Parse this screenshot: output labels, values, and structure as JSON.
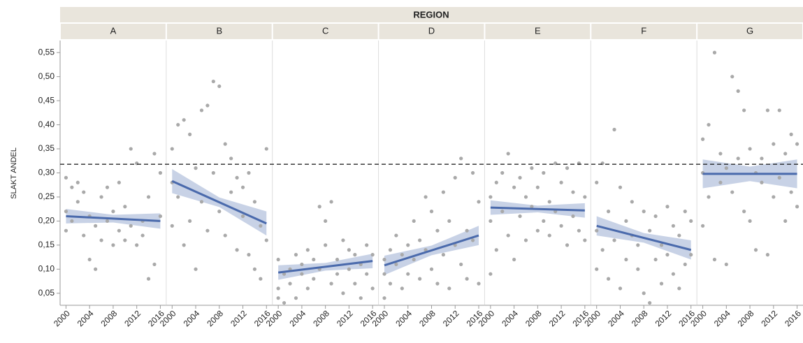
{
  "chart_data": {
    "type": "scatter",
    "facet_label": "REGION",
    "y_label": "SLAKT ANDEL",
    "ylim": [
      0.025,
      0.575
    ],
    "yticks": [
      {
        "value": 0.05,
        "label": "0,05"
      },
      {
        "value": 0.1,
        "label": "0,10"
      },
      {
        "value": 0.15,
        "label": "0,15"
      },
      {
        "value": 0.2,
        "label": "0,20"
      },
      {
        "value": 0.25,
        "label": "0,25"
      },
      {
        "value": 0.3,
        "label": "0,30"
      },
      {
        "value": 0.35,
        "label": "0,35"
      },
      {
        "value": 0.4,
        "label": "0,40"
      },
      {
        "value": 0.45,
        "label": "0,45"
      },
      {
        "value": 0.5,
        "label": "0,50"
      },
      {
        "value": 0.55,
        "label": "0,55"
      }
    ],
    "xlim": [
      1999,
      2017
    ],
    "xticks": [
      2000,
      2004,
      2008,
      2012,
      2016
    ],
    "reference_line": 0.318,
    "point_color": "#a9a9a9",
    "line_color": "#4a6aac",
    "panels": [
      {
        "title": "A",
        "x": [
          2000,
          2000,
          2000,
          2001,
          2001,
          2002,
          2002,
          2003,
          2003,
          2004,
          2004,
          2005,
          2005,
          2006,
          2006,
          2007,
          2007,
          2008,
          2008,
          2009,
          2009,
          2010,
          2010,
          2011,
          2011,
          2012,
          2012,
          2013,
          2013,
          2014,
          2014,
          2015,
          2015,
          2016,
          2016
        ],
        "y": [
          0.29,
          0.22,
          0.18,
          0.27,
          0.2,
          0.28,
          0.24,
          0.26,
          0.17,
          0.12,
          0.21,
          0.1,
          0.19,
          0.25,
          0.16,
          0.27,
          0.2,
          0.22,
          0.15,
          0.18,
          0.28,
          0.23,
          0.16,
          0.35,
          0.19,
          0.32,
          0.15,
          0.2,
          0.17,
          0.08,
          0.25,
          0.34,
          0.11,
          0.3,
          0.21
        ],
        "trend_x": [
          2000,
          2016
        ],
        "trend_y": [
          0.21,
          0.2
        ],
        "band_x": [
          2000,
          2008,
          2016
        ],
        "band_upper": [
          0.225,
          0.213,
          0.216
        ],
        "band_lower": [
          0.195,
          0.197,
          0.184
        ]
      },
      {
        "title": "B",
        "x": [
          2000,
          2000,
          2000,
          2001,
          2001,
          2002,
          2002,
          2003,
          2003,
          2004,
          2004,
          2005,
          2005,
          2006,
          2006,
          2007,
          2007,
          2008,
          2008,
          2009,
          2009,
          2010,
          2010,
          2011,
          2011,
          2012,
          2012,
          2013,
          2013,
          2014,
          2014,
          2015,
          2015,
          2016,
          2016
        ],
        "y": [
          0.35,
          0.28,
          0.19,
          0.4,
          0.25,
          0.41,
          0.15,
          0.38,
          0.2,
          0.1,
          0.31,
          0.43,
          0.24,
          0.44,
          0.18,
          0.49,
          0.3,
          0.48,
          0.22,
          0.36,
          0.17,
          0.33,
          0.26,
          0.29,
          0.14,
          0.27,
          0.21,
          0.3,
          0.13,
          0.24,
          0.1,
          0.08,
          0.19,
          0.35,
          0.16
        ],
        "trend_x": [
          2000,
          2016
        ],
        "trend_y": [
          0.283,
          0.195
        ],
        "band_x": [
          2000,
          2008,
          2016
        ],
        "band_upper": [
          0.308,
          0.249,
          0.22
        ],
        "band_lower": [
          0.258,
          0.229,
          0.17
        ]
      },
      {
        "title": "C",
        "x": [
          2000,
          2000,
          2000,
          2001,
          2001,
          2002,
          2002,
          2003,
          2003,
          2004,
          2004,
          2005,
          2005,
          2006,
          2006,
          2007,
          2007,
          2008,
          2008,
          2009,
          2009,
          2010,
          2010,
          2011,
          2011,
          2012,
          2012,
          2013,
          2013,
          2014,
          2014,
          2015,
          2015,
          2016,
          2016
        ],
        "y": [
          0.06,
          0.04,
          0.12,
          0.09,
          0.03,
          0.1,
          0.07,
          0.13,
          0.04,
          0.09,
          0.11,
          0.06,
          0.14,
          0.08,
          0.12,
          0.23,
          0.1,
          0.2,
          0.15,
          0.07,
          0.24,
          0.12,
          0.09,
          0.16,
          0.05,
          0.14,
          0.1,
          0.13,
          0.07,
          0.11,
          0.04,
          0.15,
          0.09,
          0.13,
          0.06
        ],
        "trend_x": [
          2000,
          2016
        ],
        "trend_y": [
          0.093,
          0.117
        ],
        "band_x": [
          2000,
          2008,
          2016
        ],
        "band_upper": [
          0.108,
          0.113,
          0.132
        ],
        "band_lower": [
          0.078,
          0.097,
          0.102
        ]
      },
      {
        "title": "D",
        "x": [
          2000,
          2000,
          2000,
          2001,
          2001,
          2002,
          2002,
          2003,
          2003,
          2004,
          2004,
          2005,
          2005,
          2006,
          2006,
          2007,
          2007,
          2008,
          2008,
          2009,
          2009,
          2010,
          2010,
          2011,
          2011,
          2012,
          2012,
          2013,
          2013,
          2014,
          2014,
          2015,
          2015,
          2016,
          2016
        ],
        "y": [
          0.04,
          0.12,
          0.09,
          0.14,
          0.07,
          0.17,
          0.11,
          0.13,
          0.06,
          0.15,
          0.09,
          0.2,
          0.12,
          0.16,
          0.08,
          0.25,
          0.14,
          0.22,
          0.1,
          0.18,
          0.07,
          0.26,
          0.13,
          0.2,
          0.06,
          0.29,
          0.15,
          0.33,
          0.11,
          0.18,
          0.08,
          0.3,
          0.16,
          0.24,
          0.07
        ],
        "trend_x": [
          2000,
          2016
        ],
        "trend_y": [
          0.108,
          0.17
        ],
        "band_x": [
          2000,
          2008,
          2016
        ],
        "band_upper": [
          0.128,
          0.149,
          0.19
        ],
        "band_lower": [
          0.088,
          0.129,
          0.15
        ]
      },
      {
        "title": "E",
        "x": [
          2000,
          2000,
          2000,
          2001,
          2001,
          2002,
          2002,
          2003,
          2003,
          2004,
          2004,
          2005,
          2005,
          2006,
          2006,
          2007,
          2007,
          2008,
          2008,
          2009,
          2009,
          2010,
          2010,
          2011,
          2011,
          2012,
          2012,
          2013,
          2013,
          2014,
          2014,
          2015,
          2015,
          2016,
          2016
        ],
        "y": [
          0.09,
          0.25,
          0.2,
          0.28,
          0.14,
          0.3,
          0.22,
          0.34,
          0.17,
          0.27,
          0.12,
          0.29,
          0.21,
          0.25,
          0.16,
          0.31,
          0.23,
          0.27,
          0.18,
          0.3,
          0.2,
          0.24,
          0.17,
          0.32,
          0.22,
          0.28,
          0.19,
          0.31,
          0.15,
          0.26,
          0.21,
          0.32,
          0.18,
          0.25,
          0.16
        ],
        "trend_x": [
          2000,
          2016
        ],
        "trend_y": [
          0.228,
          0.222
        ],
        "band_x": [
          2000,
          2008,
          2016
        ],
        "band_upper": [
          0.243,
          0.232,
          0.237
        ],
        "band_lower": [
          0.213,
          0.218,
          0.207
        ]
      },
      {
        "title": "F",
        "x": [
          2000,
          2000,
          2000,
          2001,
          2001,
          2002,
          2002,
          2003,
          2003,
          2004,
          2004,
          2005,
          2005,
          2006,
          2006,
          2007,
          2007,
          2008,
          2008,
          2009,
          2009,
          2010,
          2010,
          2011,
          2011,
          2012,
          2012,
          2013,
          2013,
          2014,
          2014,
          2015,
          2015,
          2016,
          2016
        ],
        "y": [
          0.28,
          0.18,
          0.1,
          0.32,
          0.14,
          0.22,
          0.08,
          0.39,
          0.16,
          0.27,
          0.06,
          0.2,
          0.12,
          0.24,
          0.17,
          0.15,
          0.1,
          0.22,
          0.05,
          0.18,
          0.03,
          0.21,
          0.12,
          0.15,
          0.07,
          0.23,
          0.13,
          0.19,
          0.09,
          0.17,
          0.06,
          0.22,
          0.11,
          0.2,
          0.13
        ],
        "trend_x": [
          2000,
          2016
        ],
        "trend_y": [
          0.19,
          0.14
        ],
        "band_x": [
          2000,
          2008,
          2016
        ],
        "band_upper": [
          0.21,
          0.175,
          0.16
        ],
        "band_lower": [
          0.17,
          0.155,
          0.12
        ]
      },
      {
        "title": "G",
        "x": [
          2000,
          2000,
          2000,
          2001,
          2001,
          2002,
          2002,
          2003,
          2003,
          2004,
          2004,
          2005,
          2005,
          2006,
          2006,
          2007,
          2007,
          2008,
          2008,
          2009,
          2009,
          2010,
          2010,
          2011,
          2011,
          2012,
          2012,
          2013,
          2013,
          2014,
          2014,
          2015,
          2015,
          2016,
          2016
        ],
        "y": [
          0.19,
          0.37,
          0.3,
          0.4,
          0.25,
          0.55,
          0.12,
          0.34,
          0.28,
          0.11,
          0.31,
          0.5,
          0.26,
          0.47,
          0.33,
          0.43,
          0.22,
          0.35,
          0.2,
          0.3,
          0.14,
          0.33,
          0.28,
          0.43,
          0.13,
          0.36,
          0.25,
          0.43,
          0.29,
          0.34,
          0.2,
          0.38,
          0.26,
          0.36,
          0.23
        ],
        "trend_x": [
          2000,
          2016
        ],
        "trend_y": [
          0.298,
          0.298
        ],
        "band_x": [
          2000,
          2008,
          2016
        ],
        "band_upper": [
          0.328,
          0.313,
          0.328
        ],
        "band_lower": [
          0.268,
          0.283,
          0.268
        ]
      }
    ]
  }
}
